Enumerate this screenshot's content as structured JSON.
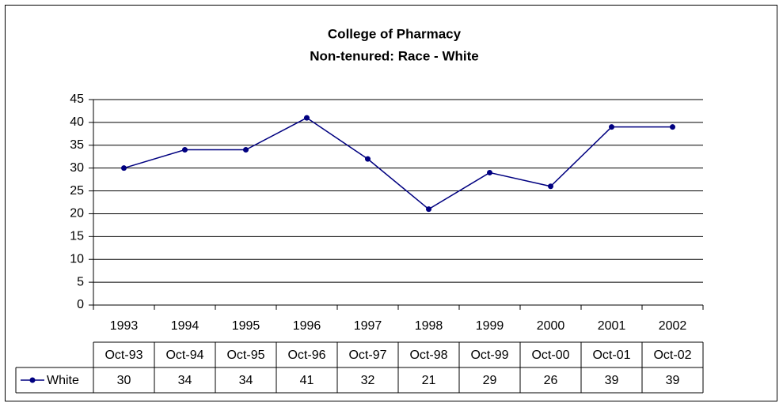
{
  "chart_data": {
    "type": "line",
    "title": "College of Pharmacy",
    "subtitle": "Non-tenured: Race - White",
    "categories": [
      "1993",
      "1994",
      "1995",
      "1996",
      "1997",
      "1998",
      "1999",
      "2000",
      "2001",
      "2002"
    ],
    "data_table": {
      "columns": [
        "Oct-93",
        "Oct-94",
        "Oct-95",
        "Oct-96",
        "Oct-97",
        "Oct-98",
        "Oct-99",
        "Oct-00",
        "Oct-01",
        "Oct-02"
      ]
    },
    "series": [
      {
        "name": "White",
        "color": "#000080",
        "values": [
          30,
          34,
          34,
          41,
          32,
          21,
          29,
          26,
          39,
          39
        ]
      }
    ],
    "ylim": [
      0,
      45
    ],
    "yticks": [
      0,
      5,
      10,
      15,
      20,
      25,
      30,
      35,
      40,
      45
    ],
    "grid": true
  }
}
